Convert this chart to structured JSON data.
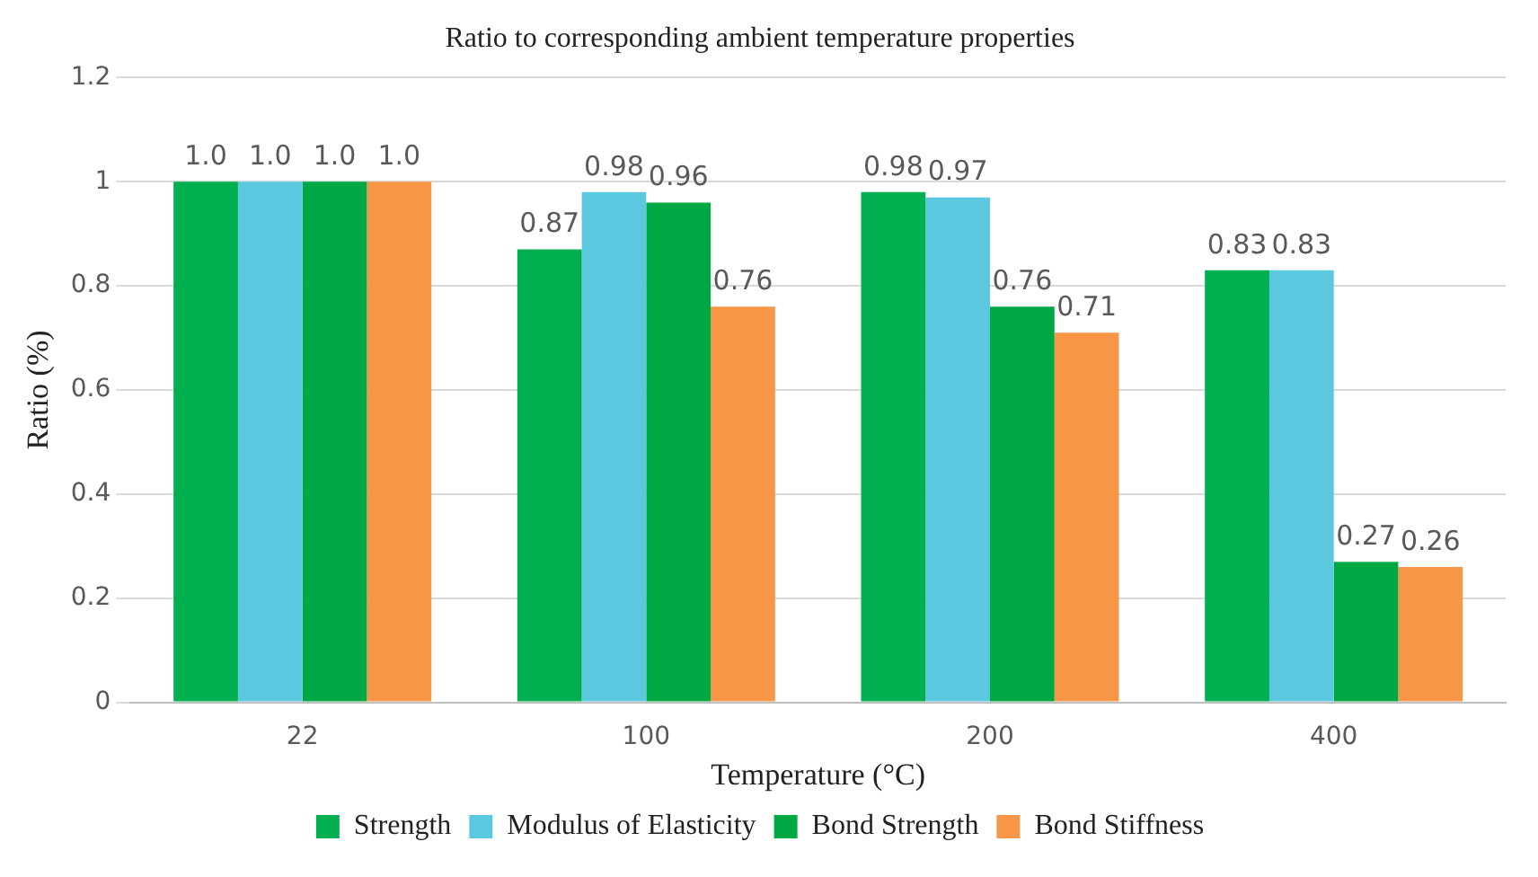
{
  "chart_data": {
    "type": "bar",
    "title": "Ratio to corresponding ambient temperature properties",
    "xlabel": "Temperature (°C)",
    "ylabel": "Ratio (%)",
    "categories": [
      "22",
      "100",
      "200",
      "400"
    ],
    "series": [
      {
        "name": "Strength",
        "color": "#00b050",
        "values": [
          1.0,
          0.87,
          0.98,
          0.83
        ],
        "value_labels": [
          "1.0",
          "0.87",
          "0.98",
          "0.83"
        ]
      },
      {
        "name": "Modulus of Elasticity",
        "color": "#5cc8e0",
        "values": [
          1.0,
          0.98,
          0.97,
          0.83
        ],
        "value_labels": [
          "1.0",
          "0.98",
          "0.97",
          "0.83"
        ]
      },
      {
        "name": "Bond Strength",
        "color": "#00a844",
        "values": [
          1.0,
          0.96,
          0.76,
          0.27
        ],
        "value_labels": [
          "1.0",
          "0.96",
          "0.76",
          "0.27"
        ]
      },
      {
        "name": "Bond Stiffness",
        "color": "#f79646",
        "values": [
          1.0,
          0.76,
          0.71,
          0.26
        ],
        "value_labels": [
          "1.0",
          "0.76",
          "0.71",
          "0.26"
        ]
      }
    ],
    "ylim": [
      0,
      1.2
    ],
    "yticks": [
      0,
      0.2,
      0.4,
      0.6,
      0.8,
      1,
      1.2
    ],
    "grid": "y",
    "legend": "bottom"
  }
}
